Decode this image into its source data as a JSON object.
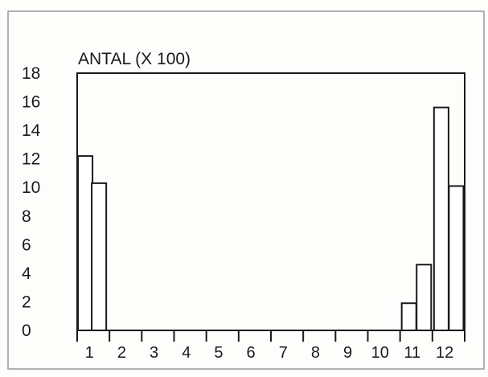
{
  "chart_data": {
    "type": "bar",
    "title": "ANTAL (X 100)",
    "xlabel": "",
    "ylabel": "",
    "ylim": [
      0,
      18
    ],
    "yticks": [
      "0",
      "2",
      "4",
      "6",
      "8",
      "10",
      "12",
      "14",
      "16",
      "18"
    ],
    "categories": [
      "1",
      "2",
      "3",
      "4",
      "5",
      "6",
      "7",
      "8",
      "9",
      "10",
      "11",
      "12"
    ],
    "values": [
      12.2,
      10.3,
      0,
      0,
      0,
      0,
      0,
      0,
      0,
      0,
      1.9,
      15.6
    ],
    "secondary_values": [
      null,
      null,
      null,
      null,
      null,
      null,
      null,
      null,
      null,
      null,
      4.6,
      10.1
    ],
    "grid": false,
    "legend": "none",
    "colors": {
      "bar_fill": "#ffffff",
      "bar_stroke": "#1a1a1a",
      "background": "#fdfdfb",
      "frame": "#555555"
    }
  }
}
